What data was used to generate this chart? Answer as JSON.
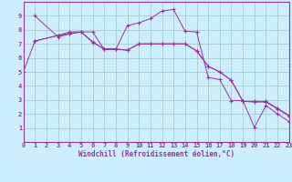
{
  "xlabel": "Windchill (Refroidissement éolien,°C)",
  "background_color": "#cceeff",
  "plot_bg_color": "#cceeff",
  "line_color": "#993399",
  "grid_color": "#aacccc",
  "spine_color": "#993399",
  "xlim": [
    0,
    23
  ],
  "ylim": [
    0,
    10
  ],
  "xtick_labels": [
    "0",
    "1",
    "2",
    "3",
    "4",
    "5",
    "6",
    "7",
    "8",
    "9",
    "10",
    "11",
    "12",
    "13",
    "14",
    "15",
    "16",
    "17",
    "18",
    "19",
    "20",
    "21",
    "22",
    "23"
  ],
  "xtick_vals": [
    0,
    1,
    2,
    3,
    4,
    5,
    6,
    7,
    8,
    9,
    10,
    11,
    12,
    13,
    14,
    15,
    16,
    17,
    18,
    19,
    20,
    21,
    22,
    23
  ],
  "ytick_vals": [
    1,
    2,
    3,
    4,
    5,
    6,
    7,
    8,
    9
  ],
  "series": [
    {
      "x": [
        1,
        3,
        4,
        5,
        6,
        7,
        8,
        9,
        10,
        11,
        12,
        13,
        14,
        15,
        16,
        17,
        18,
        19,
        20,
        21,
        22,
        23
      ],
      "y": [
        9.0,
        7.5,
        7.7,
        7.85,
        7.85,
        6.6,
        6.6,
        8.3,
        8.5,
        8.8,
        9.35,
        9.45,
        7.9,
        7.85,
        4.6,
        4.45,
        2.95,
        2.95,
        1.05,
        2.6,
        2.0,
        1.45
      ]
    },
    {
      "x": [
        1,
        3,
        4,
        5,
        6,
        7,
        8,
        9,
        10,
        11,
        12,
        13,
        14,
        15,
        16,
        17,
        18,
        19,
        20,
        21,
        22,
        23
      ],
      "y": [
        7.2,
        7.6,
        7.85,
        7.85,
        7.15,
        6.6,
        6.6,
        6.55,
        7.0,
        7.0,
        7.0,
        7.0,
        7.0,
        6.5,
        5.4,
        5.0,
        4.4,
        2.9,
        2.9,
        2.9,
        2.4,
        1.9
      ]
    },
    {
      "x": [
        1,
        3,
        4,
        5,
        6,
        7,
        8,
        9,
        10,
        11,
        12,
        13,
        14,
        15,
        16,
        17,
        18,
        19,
        20,
        21,
        22,
        23
      ],
      "y": [
        7.2,
        7.6,
        7.75,
        7.85,
        7.1,
        6.65,
        6.65,
        6.55,
        7.0,
        7.0,
        7.0,
        7.0,
        7.0,
        6.5,
        5.4,
        5.0,
        4.4,
        2.9,
        2.85,
        2.85,
        2.35,
        1.85
      ]
    },
    {
      "x": [
        0,
        1
      ],
      "y": [
        5.0,
        7.2
      ]
    }
  ],
  "tick_fontsize": 5.0,
  "xlabel_fontsize": 5.5
}
